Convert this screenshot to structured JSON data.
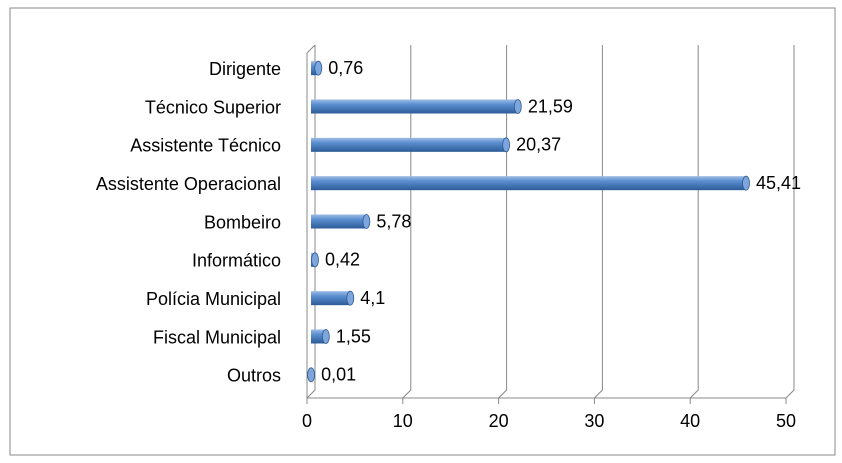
{
  "chart_data": {
    "type": "bar",
    "orientation": "horizontal",
    "categories": [
      "Dirigente",
      "Técnico Superior",
      "Assistente Técnico",
      "Assistente Operacional",
      "Bombeiro",
      "Informático",
      "Polícia Municipal",
      "Fiscal Municipal",
      "Outros"
    ],
    "values": [
      0.76,
      21.59,
      20.37,
      45.41,
      5.78,
      0.42,
      4.1,
      1.55,
      0.01
    ],
    "value_labels": [
      "0,76",
      "21,59",
      "20,37",
      "45,41",
      "5,78",
      "0,42",
      "4,1",
      "1,55",
      "0,01"
    ],
    "color": "#4f81bd",
    "xlim": [
      0,
      50
    ],
    "xticks": [
      0,
      10,
      20,
      30,
      40,
      50
    ],
    "grid": true
  }
}
